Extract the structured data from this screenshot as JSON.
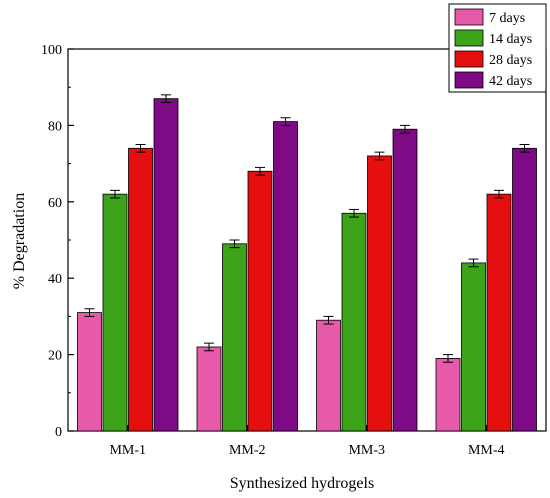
{
  "chart_data": {
    "type": "bar",
    "xlabel": "Synthesized hydrogels",
    "ylabel": "% Degradation",
    "ylim": [
      0,
      100
    ],
    "yticks": [
      0,
      20,
      40,
      60,
      80,
      100
    ],
    "grid": false,
    "legend_position": "top-right",
    "categories": [
      "MM-1",
      "MM-2",
      "MM-3",
      "MM-4"
    ],
    "series": [
      {
        "name": "7 days",
        "color": "#e65aa9",
        "values": [
          31,
          22,
          29,
          19
        ],
        "errors": [
          1,
          1,
          1,
          1
        ]
      },
      {
        "name": "14 days",
        "color": "#3da31a",
        "values": [
          62,
          49,
          57,
          44
        ],
        "errors": [
          1,
          1,
          1,
          1
        ]
      },
      {
        "name": "28 days",
        "color": "#e60f0f",
        "values": [
          74,
          68,
          72,
          62
        ],
        "errors": [
          1,
          1,
          1,
          1
        ]
      },
      {
        "name": "42 days",
        "color": "#7e0a86",
        "values": [
          87,
          81,
          79,
          74
        ],
        "errors": [
          1,
          1,
          1,
          1
        ]
      }
    ]
  }
}
